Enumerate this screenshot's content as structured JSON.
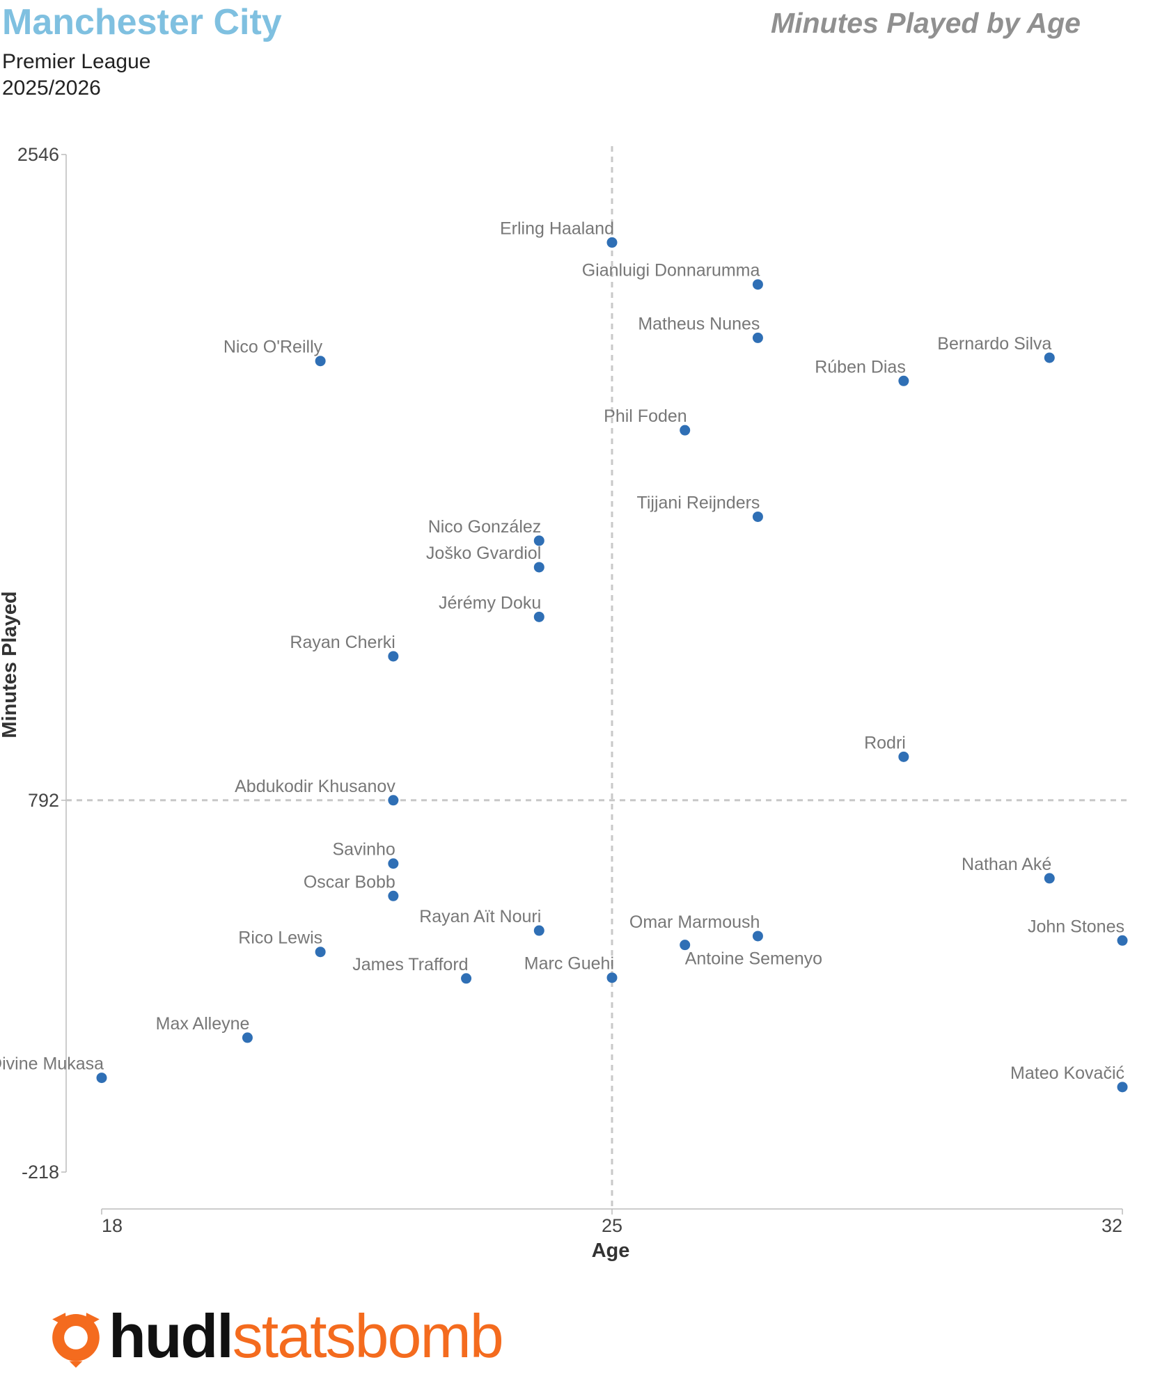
{
  "header": {
    "team": "Manchester City",
    "competition": "Premier League",
    "season": "2025/2026",
    "chart_title": "Minutes Played by Age"
  },
  "logo": {
    "brand_part1": "hudl",
    "brand_part2": "statsbomb",
    "icon": "hudl-statsbomb-logo-icon",
    "brand_color": "#f46b1e"
  },
  "colors": {
    "point": "#2f6fb5",
    "title": "#7fc0e0",
    "reference_line": "#c8c8c8"
  },
  "chart_data": {
    "type": "scatter",
    "title": "Minutes Played by Age",
    "xlabel": "Age",
    "ylabel": "Minutes Played",
    "xlim": [
      18,
      32
    ],
    "ylim": [
      -218,
      2546
    ],
    "x_ticks": [
      18,
      25,
      32
    ],
    "y_ticks": [
      2546,
      792,
      -218
    ],
    "reference_lines": {
      "x": 25,
      "y": 792
    },
    "points": [
      {
        "name": "Erling Haaland",
        "age": 25,
        "minutes": 2307
      },
      {
        "name": "Gianluigi Donnarumma",
        "age": 27,
        "minutes": 2193
      },
      {
        "name": "Matheus Nunes",
        "age": 27,
        "minutes": 2048
      },
      {
        "name": "Bernardo Silva",
        "age": 31,
        "minutes": 1994
      },
      {
        "name": "Nico O'Reilly",
        "age": 21,
        "minutes": 1985
      },
      {
        "name": "Rúben Dias",
        "age": 29,
        "minutes": 1931
      },
      {
        "name": "Phil Foden",
        "age": 26,
        "minutes": 1797
      },
      {
        "name": "Tijjani Reijnders",
        "age": 27,
        "minutes": 1562
      },
      {
        "name": "Nico González",
        "age": 24,
        "minutes": 1497
      },
      {
        "name": "Joško Gvardiol",
        "age": 24,
        "minutes": 1425
      },
      {
        "name": "Jérémy Doku",
        "age": 24,
        "minutes": 1290
      },
      {
        "name": "Rayan Cherki",
        "age": 22,
        "minutes": 1183
      },
      {
        "name": "Rodri",
        "age": 29,
        "minutes": 910
      },
      {
        "name": "Abdukodir Khusanov",
        "age": 22,
        "minutes": 792
      },
      {
        "name": "Savinho",
        "age": 22,
        "minutes": 620
      },
      {
        "name": "Nathan Aké",
        "age": 31,
        "minutes": 580
      },
      {
        "name": "Oscar Bobb",
        "age": 22,
        "minutes": 532
      },
      {
        "name": "Rayan Aït Nouri",
        "age": 24,
        "minutes": 438
      },
      {
        "name": "Omar Marmoush",
        "age": 27,
        "minutes": 423
      },
      {
        "name": "John Stones",
        "age": 32,
        "minutes": 411
      },
      {
        "name": "Antoine Semenyo",
        "age": 26,
        "minutes": 399
      },
      {
        "name": "Rico Lewis",
        "age": 21,
        "minutes": 380
      },
      {
        "name": "James Trafford",
        "age": 23,
        "minutes": 308
      },
      {
        "name": "Marc Guehi",
        "age": 25,
        "minutes": 310
      },
      {
        "name": "Max Alleyne",
        "age": 20,
        "minutes": 147
      },
      {
        "name": "Divine Mukasa",
        "age": 18,
        "minutes": 38
      },
      {
        "name": "Mateo Kovačić",
        "age": 32,
        "minutes": 13
      }
    ]
  }
}
